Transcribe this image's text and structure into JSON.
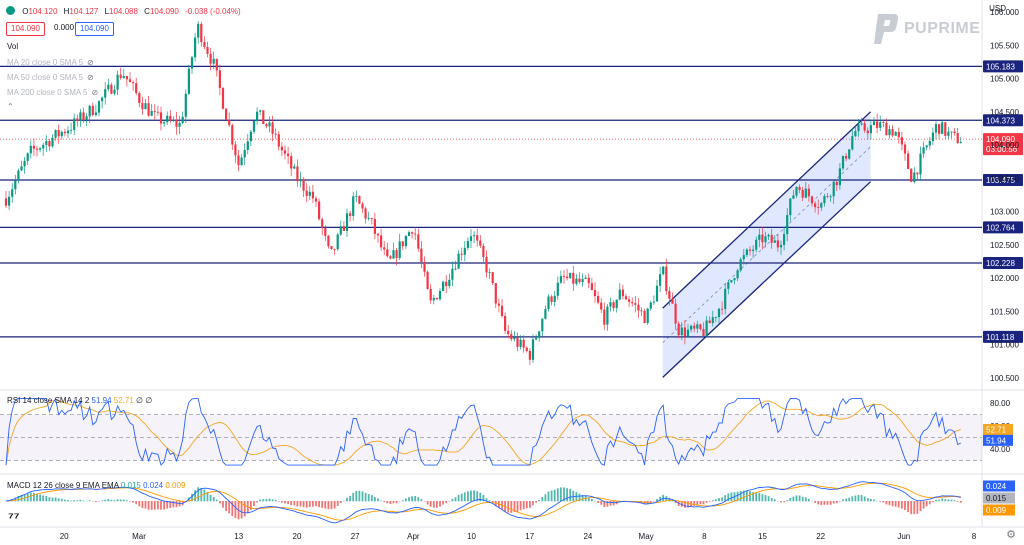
{
  "header": {
    "ohlc": {
      "o": "104.120",
      "h": "104.127",
      "l": "104.088",
      "c": "104.090",
      "chg": "-0.038 (-0.04%)"
    },
    "sell": "104.090",
    "spread": "0.000",
    "buy": "104.090",
    "legend": {
      "vol": "Vol",
      "ma20": "MA 20 close 0 SMA 5",
      "ma50": "MA 50 close 0 SMA 5",
      "ma200": "MA 200 close 0 SMA 5"
    },
    "currency": "USD",
    "brand": "PUPRIME"
  },
  "rsi_legend": {
    "label": "RSI 14 close SMA 14 2",
    "v1": "51.94",
    "v2": "52.71",
    "tail": "∅ ∅"
  },
  "macd_legend": {
    "label": "MACD 12 26 close 9 EMA EMA",
    "v1": "0.015",
    "v2": "0.024",
    "v3": "0.009"
  },
  "colors": {
    "up": "#089981",
    "down": "#f23645",
    "level": "#1a237e",
    "channel": "#2962ff",
    "rsi": "#2962ff",
    "rsi_ma": "#f5a623",
    "macd": "#2962ff",
    "signal": "#ff9800"
  },
  "chart_data": {
    "type": "candlestick",
    "instrument_axis": {
      "y_ticks": [
        "106.000",
        "105.500",
        "105.000",
        "104.500",
        "104.000",
        "103.500",
        "103.000",
        "102.500",
        "102.000",
        "101.500",
        "101.000",
        "100.500"
      ],
      "ylim": [
        100.32,
        106.18
      ],
      "x_ticks": [
        "20",
        "Mar",
        "13",
        "20",
        "27",
        "Apr",
        "10",
        "17",
        "24",
        "May",
        "8",
        "15",
        "22",
        "Jun",
        "8"
      ]
    },
    "levels": [
      {
        "value": 105.183,
        "label": "105.183"
      },
      {
        "value": 104.373,
        "label": "104.373"
      },
      {
        "value": 103.475,
        "label": "103.475"
      },
      {
        "value": 102.764,
        "label": "102.764"
      },
      {
        "value": 102.228,
        "label": "102.228"
      },
      {
        "value": 101.118,
        "label": "101.118"
      }
    ],
    "last_price": {
      "value": 104.09,
      "label": "104.090",
      "countdown": "03:00:56"
    },
    "channel": {
      "lower": [
        {
          "x": "2023-05-03",
          "y": 100.51
        },
        {
          "x": "2023-05-28",
          "y": 103.45
        }
      ],
      "upper": [
        {
          "x": "2023-05-03",
          "y": 101.55
        },
        {
          "x": "2023-05-28",
          "y": 104.5
        }
      ]
    },
    "price_path": [
      {
        "date": "2023-02-13",
        "price": 103.2
      },
      {
        "date": "2023-02-16",
        "price": 103.9
      },
      {
        "date": "2023-02-21",
        "price": 104.3
      },
      {
        "date": "2023-02-24",
        "price": 104.6
      },
      {
        "date": "2023-02-27",
        "price": 105.1
      },
      {
        "date": "2023-03-01",
        "price": 104.7
      },
      {
        "date": "2023-03-03",
        "price": 104.4
      },
      {
        "date": "2023-03-06",
        "price": 104.3
      },
      {
        "date": "2023-03-08",
        "price": 105.8
      },
      {
        "date": "2023-03-10",
        "price": 105.2
      },
      {
        "date": "2023-03-13",
        "price": 103.7
      },
      {
        "date": "2023-03-15",
        "price": 104.5
      },
      {
        "date": "2023-03-17",
        "price": 104.2
      },
      {
        "date": "2023-03-20",
        "price": 103.5
      },
      {
        "date": "2023-03-22",
        "price": 103.2
      },
      {
        "date": "2023-03-24",
        "price": 102.3
      },
      {
        "date": "2023-03-27",
        "price": 103.2
      },
      {
        "date": "2023-03-29",
        "price": 102.8
      },
      {
        "date": "2023-03-31",
        "price": 102.2
      },
      {
        "date": "2023-04-03",
        "price": 102.8
      },
      {
        "date": "2023-04-05",
        "price": 101.6
      },
      {
        "date": "2023-04-07",
        "price": 102.0
      },
      {
        "date": "2023-04-10",
        "price": 102.7
      },
      {
        "date": "2023-04-12",
        "price": 102.1
      },
      {
        "date": "2023-04-14",
        "price": 101.2
      },
      {
        "date": "2023-04-17",
        "price": 100.85
      },
      {
        "date": "2023-04-19",
        "price": 101.6
      },
      {
        "date": "2023-04-21",
        "price": 102.0
      },
      {
        "date": "2023-04-24",
        "price": 101.9
      },
      {
        "date": "2023-04-26",
        "price": 101.4
      },
      {
        "date": "2023-04-28",
        "price": 101.8
      },
      {
        "date": "2023-05-01",
        "price": 101.4
      },
      {
        "date": "2023-05-03",
        "price": 102.1
      },
      {
        "date": "2023-05-05",
        "price": 101.2
      },
      {
        "date": "2023-05-08",
        "price": 101.2
      },
      {
        "date": "2023-05-10",
        "price": 101.6
      },
      {
        "date": "2023-05-12",
        "price": 102.2
      },
      {
        "date": "2023-05-15",
        "price": 102.6
      },
      {
        "date": "2023-05-17",
        "price": 102.5
      },
      {
        "date": "2023-05-19",
        "price": 103.4
      },
      {
        "date": "2023-05-22",
        "price": 103.1
      },
      {
        "date": "2023-05-24",
        "price": 103.5
      },
      {
        "date": "2023-05-26",
        "price": 104.2
      },
      {
        "date": "2023-05-29",
        "price": 104.3
      },
      {
        "date": "2023-05-31",
        "price": 104.2
      },
      {
        "date": "2023-06-02",
        "price": 103.5
      },
      {
        "date": "2023-06-05",
        "price": 104.3
      },
      {
        "date": "2023-06-07",
        "price": 104.1
      },
      {
        "date": "2023-06-08",
        "price": 104.09
      }
    ],
    "rsi": {
      "y_ticks": [
        "80.00",
        "60.00",
        "40.00"
      ],
      "bands": [
        70,
        30
      ],
      "ylim": [
        20,
        88
      ],
      "last": 51.94,
      "last_ma": 52.71
    },
    "macd": {
      "last_macd": 0.024,
      "last_signal": 0.015,
      "last_hist": 0.009,
      "labels": [
        "0.024",
        "0.015",
        "0.009"
      ]
    }
  }
}
